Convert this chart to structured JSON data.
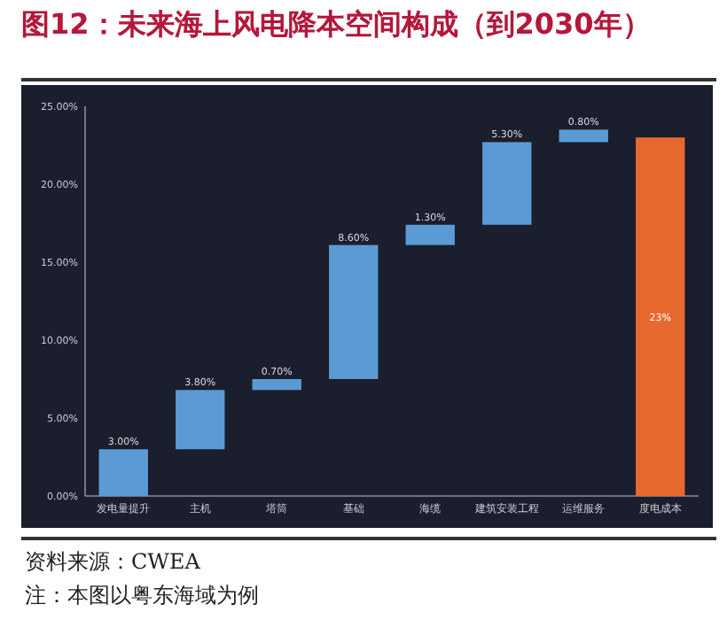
{
  "chart_data": {
    "type": "bar",
    "title": "图12：未来海上风电降本空间构成（到2030年）",
    "categories": [
      "发电量提升",
      "主机",
      "塔筒",
      "基础",
      "海缆",
      "建筑安装工程",
      "运维服务",
      "度电成本"
    ],
    "values": [
      3,
      3.8,
      0.7,
      8.6,
      1.3,
      5.3,
      0.8,
      23
    ],
    "base": [
      0,
      3,
      6.8,
      7.5,
      16.1,
      17.4,
      22.7,
      0
    ],
    "colors": [
      "#5b9bd5",
      "#5b9bd5",
      "#5b9bd5",
      "#5b9bd5",
      "#5b9bd5",
      "#5b9bd5",
      "#5b9bd5",
      "#e8692f"
    ],
    "value_labels": [
      "3.00%",
      "3.80%",
      "0.70%",
      "8.60%",
      "1.30%",
      "5.30%",
      "0.80%",
      "23%"
    ],
    "ylim": [
      0,
      25
    ],
    "yticks": [
      {
        "value": 0,
        "label": "0.00%"
      },
      {
        "value": 5,
        "label": "5.00%"
      },
      {
        "value": 10,
        "label": "10.00%"
      },
      {
        "value": 15,
        "label": "15.00%"
      },
      {
        "value": 20,
        "label": "20.00%"
      },
      {
        "value": 25,
        "label": "25.00%"
      }
    ],
    "grid": false,
    "annotations": [
      "资料来源：CWEA",
      "注：本图以粤东海域为例"
    ]
  }
}
